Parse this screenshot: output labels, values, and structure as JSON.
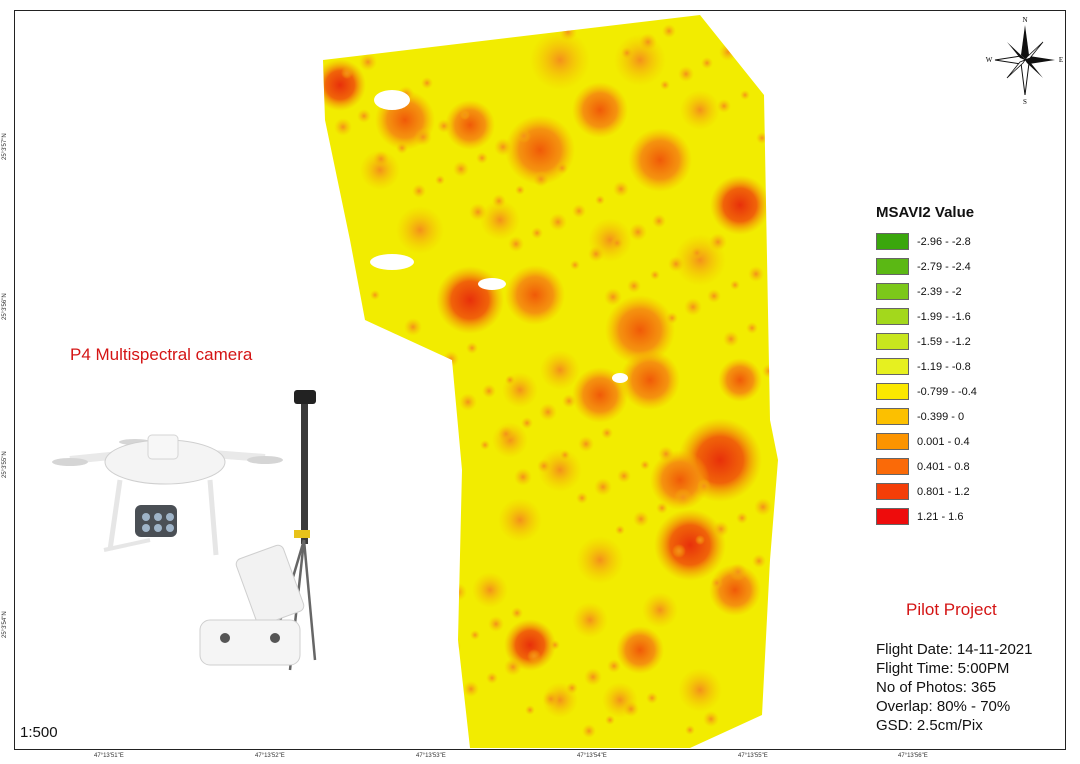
{
  "legend": {
    "title": "MSAVI2 Value",
    "classes": [
      {
        "label": "-2.96 - -2.8",
        "color": "#3aa60c"
      },
      {
        "label": "-2.79 - -2.4",
        "color": "#5bb814"
      },
      {
        "label": "-2.39 - -2",
        "color": "#7cc81a"
      },
      {
        "label": "-1.99 - -1.6",
        "color": "#a3d81c"
      },
      {
        "label": "-1.59 - -1.2",
        "color": "#c8e61e"
      },
      {
        "label": "-1.19 - -0.8",
        "color": "#e6f020"
      },
      {
        "label": "-0.799 - -0.4",
        "color": "#fbe800"
      },
      {
        "label": "-0.399 - 0",
        "color": "#fcc000"
      },
      {
        "label": "0.001 - 0.4",
        "color": "#fc9400"
      },
      {
        "label": "0.401 - 0.8",
        "color": "#fa6a08"
      },
      {
        "label": "0.801 - 1.2",
        "color": "#f43e08"
      },
      {
        "label": "1.21 - 1.6",
        "color": "#ee0c0c"
      }
    ]
  },
  "camera_title": "P4 Multispectral camera",
  "project_title": "Pilot Project",
  "info_lines": [
    "Flight Date: 14-11-2021",
    "Flight Time: 5:00PM",
    "No of Photos: 365",
    "Overlap: 80% - 70%",
    "GSD: 2.5cm/Pix"
  ],
  "scale": "1:500",
  "compass": {
    "n": "N",
    "s": "S",
    "e": "E",
    "w": "W"
  },
  "lat_labels": [
    "25°3'57\"N",
    "25°3'56\"N",
    "25°3'55\"N",
    "25°3'54\"N"
  ],
  "lon_labels": [
    "47°13'51\"E",
    "47°13'52\"E",
    "47°13'53\"E",
    "47°13'54\"E",
    "47°13'55\"E",
    "47°13'56\"E"
  ],
  "colors": {
    "title_red": "#d41414",
    "base_yellow": "#f2ec00",
    "crown_orange": "#f57a08",
    "crown_red": "#ee3a08"
  }
}
